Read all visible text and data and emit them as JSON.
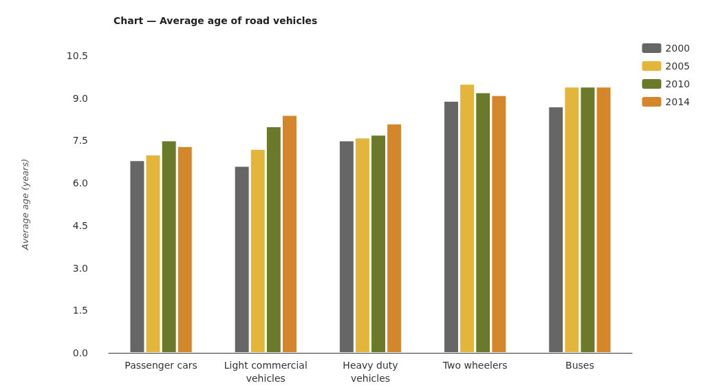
{
  "chart_data": {
    "type": "bar",
    "title": "Chart — Average age of road vehicles",
    "ylabel": "Average age (years)",
    "categories": [
      "Passenger cars",
      "Light commercial\nvehicles",
      "Heavy duty\nvehicles",
      "Two wheelers",
      "Buses"
    ],
    "series": [
      {
        "name": "2000",
        "color": "#666666",
        "values": [
          6.8,
          6.6,
          7.5,
          8.9,
          8.7
        ]
      },
      {
        "name": "2005",
        "color": "#e3b53b",
        "values": [
          7.0,
          7.2,
          7.6,
          9.5,
          9.4
        ]
      },
      {
        "name": "2010",
        "color": "#6b7a2a",
        "values": [
          7.5,
          8.0,
          7.7,
          9.2,
          9.4
        ]
      },
      {
        "name": "2014",
        "color": "#d4872a",
        "values": [
          7.3,
          8.4,
          8.1,
          9.1,
          9.4
        ]
      }
    ],
    "ylim": [
      0,
      10.5
    ],
    "yticks": [
      {
        "value": 0,
        "label": "0.0"
      },
      1.5,
      {
        "value": 3,
        "label": "3.0"
      },
      4.5,
      {
        "value": 6,
        "label": "6.0"
      },
      7.5,
      {
        "value": 9,
        "label": "9.0"
      },
      10.5
    ],
    "grid": false,
    "legend": "top right"
  }
}
